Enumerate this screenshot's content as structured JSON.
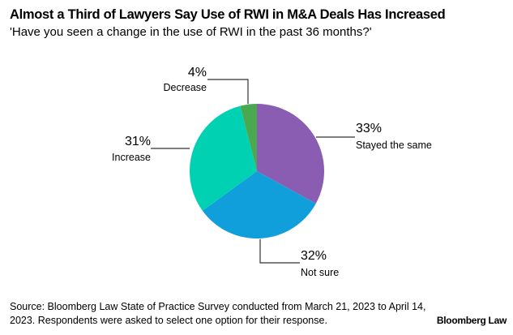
{
  "title": "Almost a Third of Lawyers Say Use of RWI in M&A Deals Has Increased",
  "subtitle": "'Have you seen a change in the use of RWI in the past 36 months?'",
  "chart_data": {
    "type": "pie",
    "slices": [
      {
        "label": "Stayed the same",
        "value": 33,
        "value_label": "33%",
        "color": "#8a5db3"
      },
      {
        "label": "Not sure",
        "value": 32,
        "value_label": "32%",
        "color": "#119fdc"
      },
      {
        "label": "Increase",
        "value": 31,
        "value_label": "31%",
        "color": "#00d1b2"
      },
      {
        "label": "Decrease",
        "value": 4,
        "value_label": "4%",
        "color": "#4aa851"
      }
    ],
    "start": "top",
    "direction": "clockwise"
  },
  "source": "Source: Bloomberg Law State of Practice Survey conducted from March 21, 2023 to April 14, 2023. Respondents were asked to select one option for their response.",
  "logo": "Bloomberg Law"
}
